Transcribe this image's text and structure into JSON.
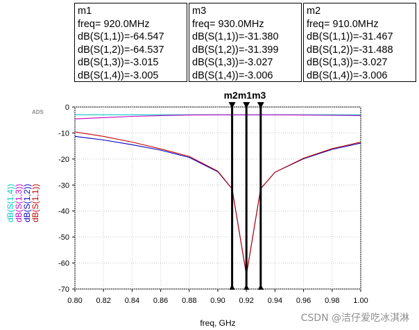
{
  "markers": [
    {
      "name": "m1",
      "freq_text": "freq= 920.0MHz",
      "lines": [
        "dB(S(1,1))=-64.547",
        "dB(S(1,2))=-64.537",
        "dB(S(1,3))=-3.015",
        "dB(S(1,4))=-3.005"
      ]
    },
    {
      "name": "m3",
      "freq_text": "freq= 930.0MHz",
      "lines": [
        "dB(S(1,1))=-31.380",
        "dB(S(1,2))=-31.399",
        "dB(S(1,3))=-3.027",
        "dB(S(1,4))=-3.006"
      ]
    },
    {
      "name": "m2",
      "freq_text": "freq= 910.0MHz",
      "lines": [
        "dB(S(1,1))=-31.467",
        "dB(S(1,2))=-31.488",
        "dB(S(1,3))=-3.027",
        "dB(S(1,4))=-3.006"
      ]
    }
  ],
  "chart_data": {
    "type": "line",
    "corner_label": "ADS",
    "xlabel": "freq, GHz",
    "xlim": [
      0.8,
      1.0
    ],
    "ylim": [
      -70,
      0
    ],
    "x_ticks": [
      "0.80",
      "0.82",
      "0.84",
      "0.86",
      "0.88",
      "0.90",
      "0.92",
      "0.94",
      "0.96",
      "0.98",
      "1.00"
    ],
    "y_ticks": [
      "0",
      "-10",
      "-20",
      "-30",
      "-40",
      "-50",
      "-60",
      "-70"
    ],
    "grid": true,
    "x": [
      0.8,
      0.82,
      0.84,
      0.86,
      0.88,
      0.9,
      0.91,
      0.92,
      0.93,
      0.94,
      0.96,
      0.98,
      1.0
    ],
    "series": [
      {
        "name": "dB(S(1,4))",
        "color": "#00c8c8",
        "values": [
          -3.0,
          -3.0,
          -3.0,
          -3.0,
          -3.0,
          -3.0,
          -3.006,
          -3.005,
          -3.006,
          -3.0,
          -3.0,
          -3.0,
          -3.0
        ]
      },
      {
        "name": "dB(S(1,3))",
        "color": "#c000c0",
        "values": [
          -4.6,
          -4.1,
          -3.6,
          -3.3,
          -3.1,
          -3.03,
          -3.027,
          -3.015,
          -3.027,
          -3.03,
          -3.1,
          -3.2,
          -3.3
        ]
      },
      {
        "name": "dB(S(1,2))",
        "color": "#0000c0",
        "values": [
          -11.3,
          -12.7,
          -14.5,
          -16.6,
          -19.4,
          -24.9,
          -31.488,
          -64.537,
          -31.399,
          -25.1,
          -19.9,
          -16.3,
          -13.9
        ]
      },
      {
        "name": "dB(S(1,1))",
        "color": "#c00000",
        "values": [
          -9.6,
          -11.3,
          -13.5,
          -16.1,
          -19.0,
          -24.7,
          -31.467,
          -64.547,
          -31.38,
          -25.1,
          -19.7,
          -16.0,
          -13.5
        ]
      }
    ],
    "marker_lines": [
      {
        "name": "m2",
        "x": 0.91
      },
      {
        "name": "m1",
        "x": 0.92
      },
      {
        "name": "m3",
        "x": 0.93
      }
    ]
  },
  "watermark": "CSDN @洁仔爱吃冰淇淋"
}
